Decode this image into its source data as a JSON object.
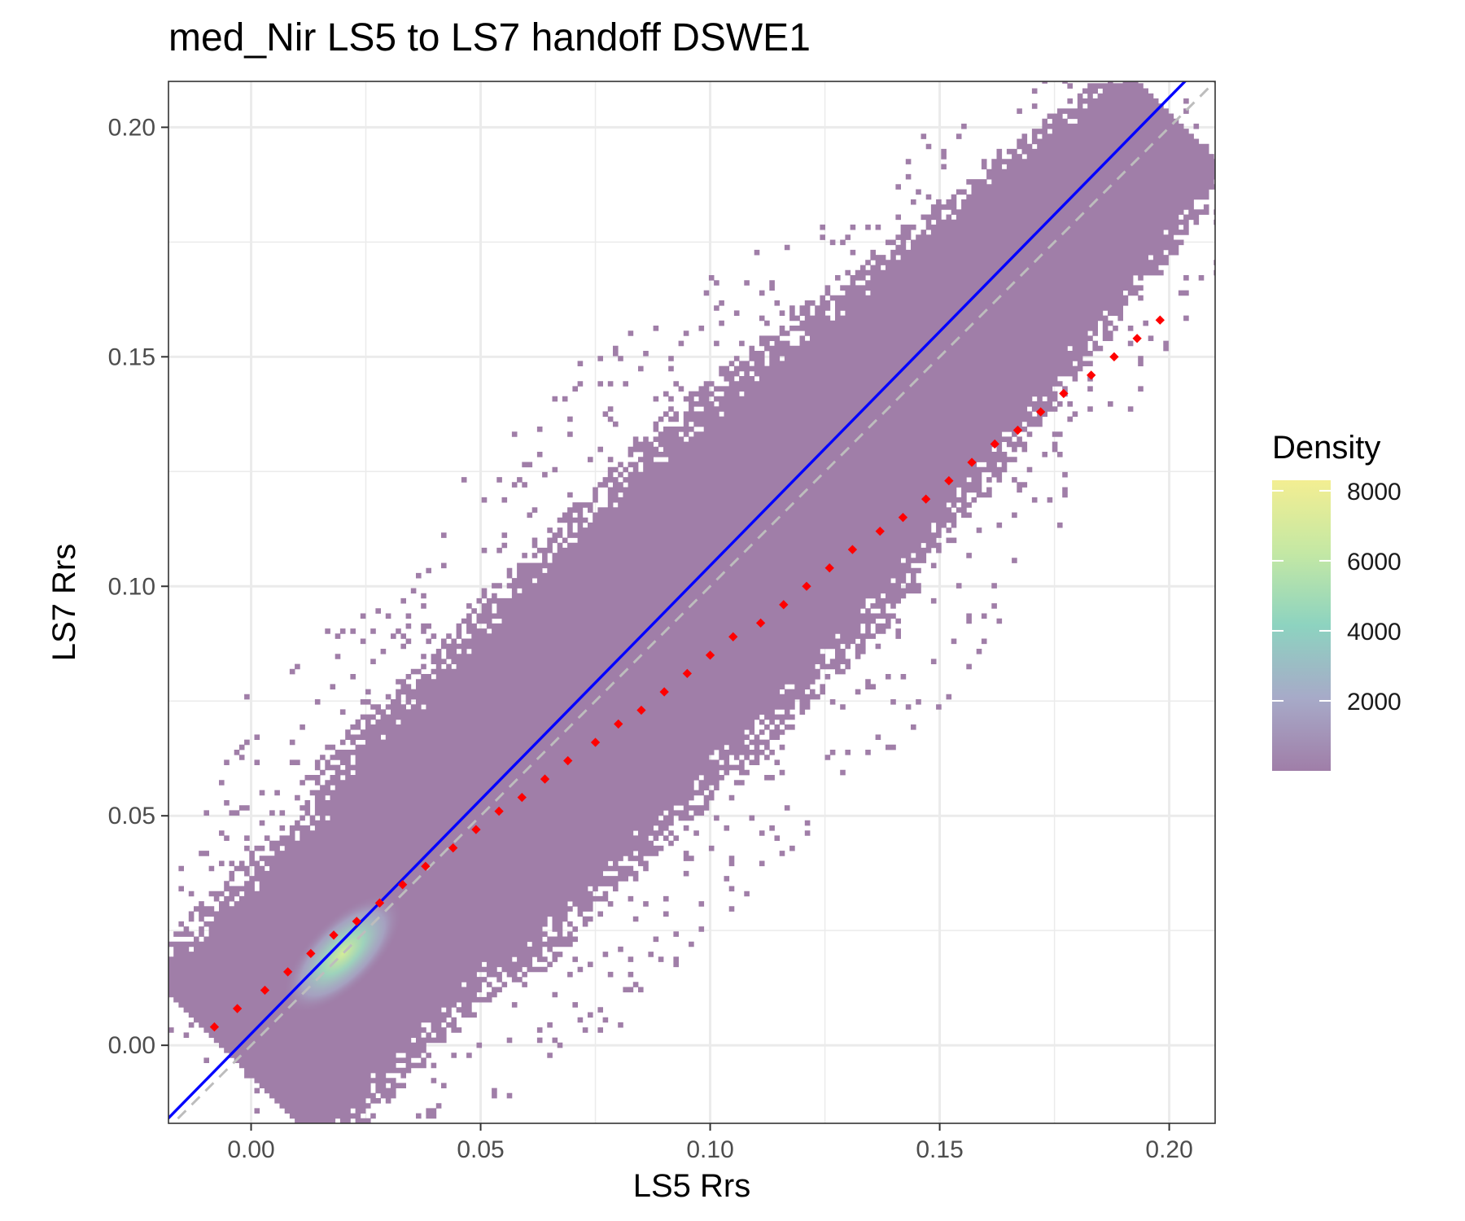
{
  "chart_data": {
    "type": "heatmap",
    "title": "med_Nir LS5 to LS7 handoff DSWE1",
    "xlabel": "LS5 Rrs",
    "ylabel": "LS7 Rrs",
    "xlim": [
      -0.018,
      0.21
    ],
    "ylim": [
      -0.017,
      0.21
    ],
    "x_ticks": [
      0.0,
      0.05,
      0.1,
      0.15,
      0.2
    ],
    "x_tick_labels": [
      "0.00",
      "0.05",
      "0.10",
      "0.15",
      "0.20"
    ],
    "y_ticks": [
      0.0,
      0.05,
      0.1,
      0.15,
      0.2
    ],
    "y_tick_labels": [
      "0.00",
      "0.05",
      "0.10",
      "0.15",
      "0.20"
    ],
    "grid": true,
    "legend": {
      "title": "Density",
      "position": "right",
      "range": [
        0,
        8300
      ],
      "ticks": [
        2000,
        4000,
        6000,
        8000
      ],
      "tick_labels": [
        "2000",
        "4000",
        "6000",
        "8000"
      ],
      "colors": [
        "#a07ea8",
        "#a7aac8",
        "#8dd3c0",
        "#c4e8a4",
        "#f3ee92"
      ]
    },
    "density_peak": {
      "x": 0.02,
      "y": 0.02,
      "value": 8000
    },
    "series": [
      {
        "name": "fit",
        "style": "solid",
        "color": "#0000ff",
        "intercept": 0.0025,
        "slope": 1.02
      },
      {
        "name": "1:1 line",
        "style": "dashed",
        "color": "#bdbdbd",
        "intercept": 0.0,
        "slope": 1.0
      },
      {
        "name": "quantile handoff",
        "style": "dotted",
        "color": "#ff0000",
        "x": [
          -0.008,
          -0.003,
          0.003,
          0.008,
          0.013,
          0.018,
          0.023,
          0.028,
          0.033,
          0.038,
          0.044,
          0.049,
          0.054,
          0.059,
          0.064,
          0.069,
          0.075,
          0.08,
          0.085,
          0.09,
          0.095,
          0.1,
          0.105,
          0.111,
          0.116,
          0.121,
          0.126,
          0.131,
          0.137,
          0.142,
          0.147,
          0.152,
          0.157,
          0.162,
          0.167,
          0.172,
          0.177,
          0.183,
          0.188,
          0.193,
          0.198
        ],
        "y": [
          0.004,
          0.008,
          0.012,
          0.016,
          0.02,
          0.024,
          0.027,
          0.031,
          0.035,
          0.039,
          0.043,
          0.047,
          0.051,
          0.054,
          0.058,
          0.062,
          0.066,
          0.07,
          0.073,
          0.077,
          0.081,
          0.085,
          0.089,
          0.092,
          0.096,
          0.1,
          0.104,
          0.108,
          0.112,
          0.115,
          0.119,
          0.123,
          0.127,
          0.131,
          0.134,
          0.138,
          0.142,
          0.146,
          0.15,
          0.154,
          0.158
        ]
      }
    ]
  }
}
